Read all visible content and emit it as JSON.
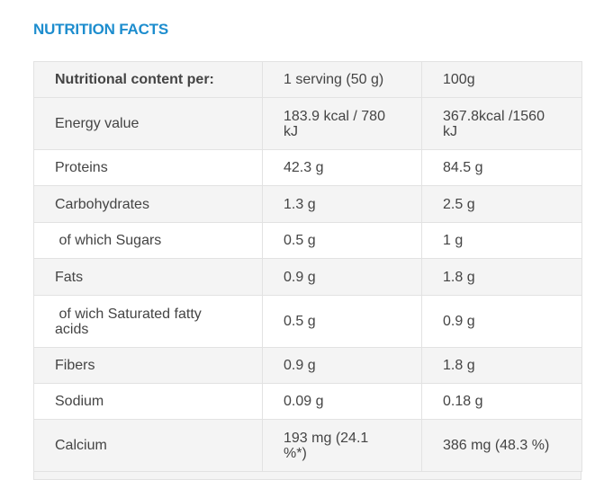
{
  "header": {
    "title": "NUTRITION FACTS"
  },
  "table": {
    "rows": [
      [
        "Nutritional content per:",
        "1 serving (50 g)",
        "100g"
      ],
      [
        "Energy value",
        "183.9 kcal / 780 kJ",
        "367.8kcal /1560 kJ"
      ],
      [
        "Proteins",
        "42.3 g",
        "84.5 g"
      ],
      [
        "Carbohydrates",
        "1.3 g",
        "2.5 g"
      ],
      [
        " of which Sugars",
        "0.5 g",
        "1 g"
      ],
      [
        "Fats",
        "0.9 g",
        "1.8 g"
      ],
      [
        " of wich Saturated fatty acids",
        "0.5 g",
        "0.9 g"
      ],
      [
        "Fibers",
        "0.9 g",
        "1.8 g"
      ],
      [
        "Sodium",
        "0.09 g",
        "0.18 g"
      ],
      [
        "Calcium",
        "193 mg (24.1 %*)",
        "386 mg (48.3 %)"
      ]
    ]
  }
}
